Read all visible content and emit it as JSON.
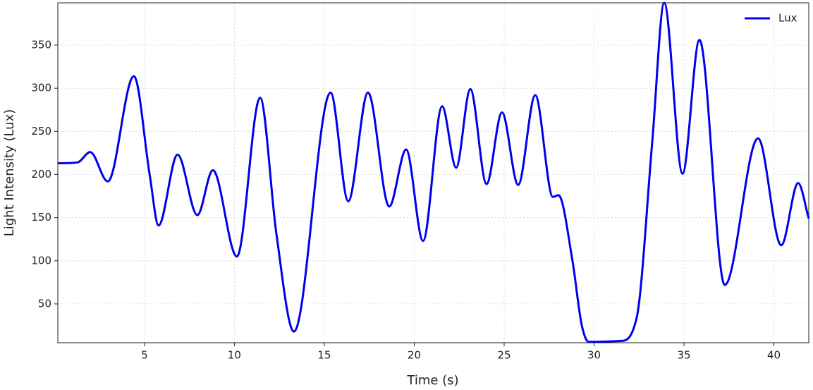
{
  "chart_data": {
    "type": "line",
    "xlabel": "Time (s)",
    "ylabel": "Light Intensity (Lux)",
    "x": [
      0.18,
      1.27,
      1.98,
      2.96,
      4.41,
      5.3,
      5.78,
      6.84,
      7.94,
      8.8,
      10.14,
      11.43,
      12.33,
      13.31,
      15.35,
      16.33,
      17.43,
      18.61,
      19.55,
      20.49,
      21.55,
      22.33,
      23.12,
      24.02,
      24.88,
      25.78,
      26.73,
      27.71,
      28.02,
      28.8,
      29.31,
      29.71,
      31.47,
      32.37,
      33.24,
      33.9,
      34.92,
      35.86,
      37.27,
      39.12,
      40.41,
      41.35,
      41.94
    ],
    "series": [
      {
        "name": "Lux",
        "color": "#0000ee",
        "values": [
          213,
          214,
          226,
          192,
          314,
          198,
          141,
          223,
          153,
          205,
          105,
          289,
          132,
          18,
          295,
          169,
          295,
          163,
          229,
          123,
          279,
          208,
          299,
          189,
          272,
          188,
          292,
          174,
          176,
          100,
          26,
          6,
          7,
          34,
          239,
          399,
          201,
          356,
          72,
          242,
          118,
          190,
          149
        ]
      }
    ],
    "xlim": [
      0.18,
      41.94
    ],
    "ylim": [
      5,
      399
    ],
    "xticks": [
      5,
      10,
      15,
      20,
      25,
      30,
      35,
      40
    ],
    "yticks": [
      50,
      100,
      150,
      200,
      250,
      300,
      350
    ],
    "grid": true,
    "legend": "upper right"
  }
}
